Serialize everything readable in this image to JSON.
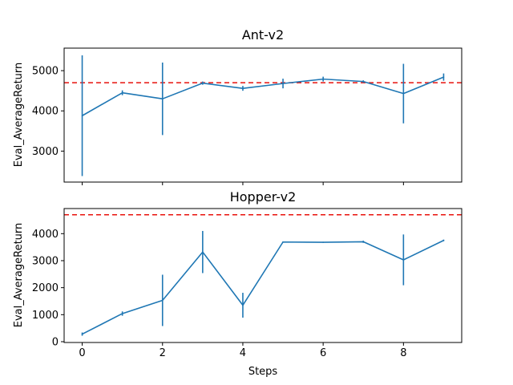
{
  "figure": {
    "xlabel": "Steps"
  },
  "chart_data": [
    {
      "type": "line",
      "title": "Ant-v2",
      "xlabel": "",
      "ylabel": "Eval_AverageReturn",
      "xlim": [
        -0.45,
        9.45
      ],
      "ylim": [
        2230,
        5560
      ],
      "x_ticks": [
        0,
        2,
        4,
        6,
        8
      ],
      "x_tick_labels_visible": false,
      "y_ticks": [
        3000,
        4000,
        5000
      ],
      "y_tick_labels": [
        "3000",
        "4000",
        "5000"
      ],
      "reference_line": {
        "y": 4700,
        "color": "#e8120c",
        "style": "dashed"
      },
      "series": [
        {
          "color": "#1f77b4",
          "x": [
            0,
            1,
            2,
            3,
            4,
            5,
            6,
            7,
            8,
            9
          ],
          "y": [
            3880,
            4450,
            4300,
            4690,
            4560,
            4680,
            4790,
            4730,
            4430,
            4840
          ],
          "yerr": [
            1500,
            60,
            900,
            40,
            60,
            120,
            60,
            30,
            740,
            90
          ]
        }
      ]
    },
    {
      "type": "line",
      "title": "Hopper-v2",
      "xlabel": "Steps",
      "ylabel": "Eval_AverageReturn",
      "xlim": [
        -0.45,
        9.45
      ],
      "ylim": [
        -30,
        4930
      ],
      "x_ticks": [
        0,
        2,
        4,
        6,
        8
      ],
      "x_tick_labels_visible": true,
      "x_tick_labels": [
        "0",
        "2",
        "4",
        "6",
        "8"
      ],
      "y_ticks": [
        0,
        1000,
        2000,
        3000,
        4000
      ],
      "y_tick_labels": [
        "0",
        "1000",
        "2000",
        "3000",
        "4000"
      ],
      "reference_line": {
        "y": 4700,
        "color": "#e8120c",
        "style": "dashed"
      },
      "series": [
        {
          "color": "#1f77b4",
          "x": [
            0,
            1,
            2,
            3,
            4,
            5,
            6,
            7,
            8,
            9
          ],
          "y": [
            280,
            1040,
            1530,
            3320,
            1350,
            3690,
            3680,
            3700,
            3030,
            3750
          ],
          "yerr": [
            60,
            80,
            950,
            780,
            460,
            20,
            10,
            40,
            940,
            30
          ]
        }
      ]
    }
  ]
}
